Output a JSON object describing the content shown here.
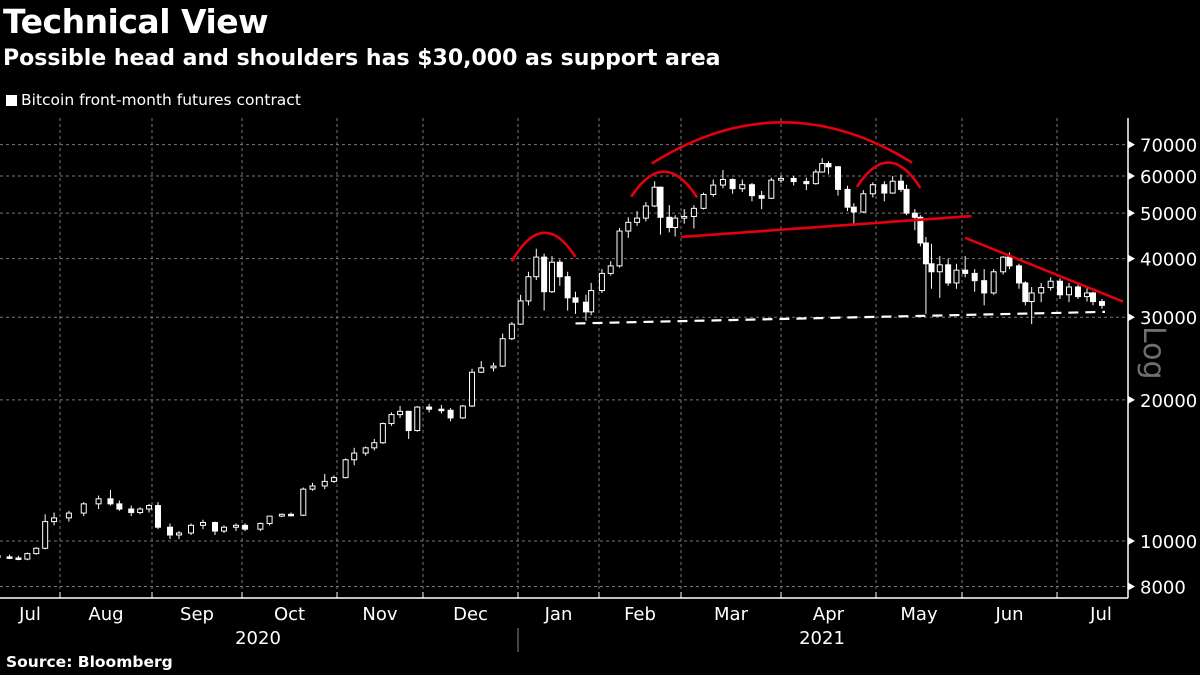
{
  "header": {
    "title": "Technical View",
    "subtitle": "Possible head and shoulders has $30,000 as support area"
  },
  "footer": {
    "source": "Source: Bloomberg"
  },
  "colors": {
    "candle": "#ffffff",
    "annotation": "#e3000f",
    "support": "#ffffff",
    "grid": "#777777"
  },
  "chart_data": {
    "type": "candlestick",
    "title": "Technical View",
    "subtitle": "Possible head and shoulders has $30,000 as support area",
    "legend": [
      {
        "label": "Bitcoin front-month futures contract",
        "placement": "top-left"
      }
    ],
    "yscale": "log",
    "ylabel_note": "Log",
    "ylim": [
      7500,
      80000
    ],
    "yticks": [
      8000,
      10000,
      20000,
      30000,
      40000,
      50000,
      60000,
      70000
    ],
    "ytick_labels": [
      "8000",
      "10000",
      "20000",
      "30000",
      "40000",
      "50000",
      "60000",
      "70000"
    ],
    "xticks": [
      {
        "label": "Jul",
        "month": "2020-07"
      },
      {
        "label": "Aug",
        "month": "2020-08"
      },
      {
        "label": "Sep",
        "month": "2020-09"
      },
      {
        "label": "Oct",
        "month": "2020-10"
      },
      {
        "label": "Nov",
        "month": "2020-11"
      },
      {
        "label": "Dec",
        "month": "2020-12"
      },
      {
        "label": "Jan",
        "month": "2021-01"
      },
      {
        "label": "Feb",
        "month": "2021-02"
      },
      {
        "label": "Mar",
        "month": "2021-03"
      },
      {
        "label": "Apr",
        "month": "2021-04"
      },
      {
        "label": "May",
        "month": "2021-05"
      },
      {
        "label": "Jun",
        "month": "2021-06"
      },
      {
        "label": "Jul",
        "month": "2021-07"
      }
    ],
    "years": [
      "2020",
      "2021"
    ],
    "grid": true,
    "columns": [
      "date",
      "open",
      "high",
      "low",
      "close"
    ],
    "candles": [
      [
        "2020-07-11",
        9300,
        9400,
        9200,
        9250
      ],
      [
        "2020-07-15",
        9250,
        9350,
        9150,
        9200
      ],
      [
        "2020-07-18",
        9200,
        9300,
        9100,
        9150
      ],
      [
        "2020-07-21",
        9150,
        9450,
        9100,
        9400
      ],
      [
        "2020-07-24",
        9400,
        9700,
        9350,
        9650
      ],
      [
        "2020-07-27",
        9650,
        11400,
        9600,
        11000
      ],
      [
        "2020-07-30",
        11000,
        11500,
        10800,
        11200
      ],
      [
        "2020-08-04",
        11200,
        11600,
        11000,
        11470
      ],
      [
        "2020-08-09",
        11470,
        12100,
        11300,
        12000
      ],
      [
        "2020-08-14",
        12000,
        12500,
        11700,
        12300
      ],
      [
        "2020-08-18",
        12300,
        12850,
        11900,
        12000
      ],
      [
        "2020-08-21",
        12000,
        12200,
        11600,
        11700
      ],
      [
        "2020-08-25",
        11700,
        11900,
        11300,
        11500
      ],
      [
        "2020-08-28",
        11500,
        11800,
        11400,
        11700
      ],
      [
        "2020-08-31",
        11700,
        12000,
        11500,
        11900
      ],
      [
        "2020-09-03",
        11900,
        12100,
        10600,
        10700
      ],
      [
        "2020-09-07",
        10700,
        10900,
        10100,
        10300
      ],
      [
        "2020-09-10",
        10300,
        10500,
        10100,
        10400
      ],
      [
        "2020-09-14",
        10400,
        10900,
        10300,
        10800
      ],
      [
        "2020-09-18",
        10800,
        11100,
        10600,
        10950
      ],
      [
        "2020-09-22",
        10950,
        11000,
        10300,
        10500
      ],
      [
        "2020-09-25",
        10500,
        10800,
        10400,
        10700
      ],
      [
        "2020-09-29",
        10700,
        10900,
        10500,
        10800
      ],
      [
        "2020-10-02",
        10800,
        10900,
        10500,
        10600
      ],
      [
        "2020-10-07",
        10600,
        10950,
        10500,
        10900
      ],
      [
        "2020-10-10",
        10900,
        11300,
        10800,
        11300
      ],
      [
        "2020-10-14",
        11300,
        11450,
        11250,
        11400
      ],
      [
        "2020-10-17",
        11400,
        11500,
        11300,
        11350
      ],
      [
        "2020-10-21",
        11350,
        13000,
        11300,
        12900
      ],
      [
        "2020-10-24",
        12900,
        13300,
        12800,
        13100
      ],
      [
        "2020-10-28",
        13100,
        13900,
        12900,
        13400
      ],
      [
        "2020-10-31",
        13400,
        13800,
        13300,
        13650
      ],
      [
        "2020-11-04",
        13650,
        15000,
        13600,
        14900
      ],
      [
        "2020-11-07",
        14900,
        15800,
        14500,
        15400
      ],
      [
        "2020-11-11",
        15400,
        15900,
        15200,
        15800
      ],
      [
        "2020-11-14",
        15800,
        16500,
        15600,
        16200
      ],
      [
        "2020-11-17",
        16200,
        17900,
        16100,
        17800
      ],
      [
        "2020-11-20",
        17800,
        18800,
        17600,
        18600
      ],
      [
        "2020-11-23",
        18600,
        19400,
        18300,
        18900
      ],
      [
        "2020-11-26",
        18900,
        18950,
        16500,
        17200
      ],
      [
        "2020-11-29",
        17200,
        19400,
        17100,
        19300
      ],
      [
        "2020-12-03",
        19300,
        19600,
        18800,
        19100
      ],
      [
        "2020-12-07",
        19100,
        19500,
        18700,
        19000
      ],
      [
        "2020-12-10",
        19000,
        19200,
        18000,
        18300
      ],
      [
        "2020-12-14",
        18300,
        19500,
        18200,
        19400
      ],
      [
        "2020-12-17",
        19400,
        23300,
        19300,
        22900
      ],
      [
        "2020-12-20",
        22900,
        24200,
        22800,
        23400
      ],
      [
        "2020-12-24",
        23400,
        24000,
        23000,
        23600
      ],
      [
        "2020-12-27",
        23600,
        27700,
        23500,
        27000
      ],
      [
        "2020-12-30",
        27000,
        29300,
        26800,
        29000
      ],
      [
        "2021-01-02",
        29000,
        33500,
        28900,
        32500
      ],
      [
        "2021-01-05",
        32500,
        37500,
        31800,
        36600
      ],
      [
        "2021-01-08",
        36600,
        42000,
        36000,
        40300
      ],
      [
        "2021-01-11",
        40300,
        41000,
        31000,
        34000
      ],
      [
        "2021-01-14",
        34000,
        40500,
        33800,
        39300
      ],
      [
        "2021-01-17",
        39300,
        39800,
        35000,
        36600
      ],
      [
        "2021-01-20",
        36600,
        37500,
        31000,
        33000
      ],
      [
        "2021-01-23",
        33000,
        34000,
        30500,
        32300
      ],
      [
        "2021-01-27",
        32300,
        33500,
        29500,
        30800
      ],
      [
        "2021-01-29",
        30800,
        35500,
        30300,
        34200
      ],
      [
        "2021-02-02",
        34200,
        38000,
        33800,
        37200
      ],
      [
        "2021-02-05",
        37200,
        39500,
        36800,
        38600
      ],
      [
        "2021-02-08",
        38600,
        46500,
        38300,
        45800
      ],
      [
        "2021-02-11",
        45800,
        49000,
        44300,
        47800
      ],
      [
        "2021-02-14",
        47800,
        50500,
        47000,
        48800
      ],
      [
        "2021-02-17",
        48800,
        52800,
        48000,
        51800
      ],
      [
        "2021-02-20",
        51800,
        58500,
        51500,
        56800
      ],
      [
        "2021-02-22",
        56800,
        57000,
        45000,
        49000
      ],
      [
        "2021-02-25",
        49000,
        52000,
        45500,
        46600
      ],
      [
        "2021-02-27",
        46600,
        49500,
        44600,
        48800
      ],
      [
        "2021-03-02",
        48800,
        51000,
        47500,
        49200
      ],
      [
        "2021-03-05",
        49200,
        52000,
        46400,
        51200
      ],
      [
        "2021-03-08",
        51200,
        55300,
        50900,
        54800
      ],
      [
        "2021-03-11",
        54800,
        59000,
        54200,
        57400
      ],
      [
        "2021-03-14",
        57400,
        61800,
        56500,
        59000
      ],
      [
        "2021-03-17",
        59000,
        59300,
        55000,
        56400
      ],
      [
        "2021-03-20",
        56400,
        59000,
        55500,
        57500
      ],
      [
        "2021-03-23",
        57500,
        58000,
        53000,
        54500
      ],
      [
        "2021-03-26",
        54500,
        55800,
        51000,
        53800
      ],
      [
        "2021-03-29",
        53800,
        59500,
        53600,
        58800
      ],
      [
        "2021-04-01",
        58800,
        60200,
        58000,
        59300
      ],
      [
        "2021-04-05",
        59300,
        60000,
        57300,
        58400
      ],
      [
        "2021-04-09",
        58400,
        59500,
        56000,
        57800
      ],
      [
        "2021-04-12",
        57800,
        62000,
        57500,
        61200
      ],
      [
        "2021-04-14",
        61200,
        65500,
        61000,
        63800
      ],
      [
        "2021-04-16",
        63800,
        64500,
        60500,
        62800
      ],
      [
        "2021-04-19",
        62800,
        63000,
        54500,
        56200
      ],
      [
        "2021-04-22",
        56200,
        57200,
        50500,
        51500
      ],
      [
        "2021-04-24",
        51500,
        52500,
        47000,
        50300
      ],
      [
        "2021-04-27",
        50300,
        56000,
        50000,
        55000
      ],
      [
        "2021-04-30",
        55000,
        58200,
        54000,
        57500
      ],
      [
        "2021-05-04",
        57500,
        58500,
        53000,
        55200
      ],
      [
        "2021-05-07",
        55200,
        60000,
        55000,
        58500
      ],
      [
        "2021-05-10",
        58500,
        60500,
        55500,
        56200
      ],
      [
        "2021-05-12",
        56200,
        57500,
        49500,
        50000
      ],
      [
        "2021-05-15",
        50000,
        51000,
        46000,
        49000
      ],
      [
        "2021-05-17",
        49000,
        49500,
        42500,
        43200
      ],
      [
        "2021-05-19",
        43200,
        44500,
        30500,
        39000
      ],
      [
        "2021-05-21",
        39000,
        43000,
        34500,
        37500
      ],
      [
        "2021-05-24",
        37500,
        40500,
        33000,
        38800
      ],
      [
        "2021-05-27",
        38800,
        40000,
        35000,
        35500
      ],
      [
        "2021-05-30",
        35500,
        39000,
        34500,
        37800
      ],
      [
        "2021-06-02",
        37800,
        40500,
        36500,
        37200
      ],
      [
        "2021-06-05",
        37200,
        38000,
        34000,
        35900
      ],
      [
        "2021-06-08",
        35900,
        38000,
        31800,
        33800
      ],
      [
        "2021-06-11",
        33800,
        38000,
        33500,
        37500
      ],
      [
        "2021-06-14",
        37500,
        40500,
        37000,
        40300
      ],
      [
        "2021-06-16",
        40300,
        41200,
        38000,
        38600
      ],
      [
        "2021-06-19",
        38600,
        39000,
        34500,
        35500
      ],
      [
        "2021-06-21",
        35500,
        35800,
        31800,
        32400
      ],
      [
        "2021-06-23",
        32400,
        34800,
        29000,
        33800
      ],
      [
        "2021-06-26",
        33800,
        35500,
        32300,
        34700
      ],
      [
        "2021-06-29",
        34700,
        36500,
        34200,
        35800
      ],
      [
        "2021-07-02",
        35800,
        36300,
        32800,
        33500
      ],
      [
        "2021-07-05",
        33500,
        35500,
        32300,
        34800
      ],
      [
        "2021-07-08",
        34800,
        35200,
        32800,
        33200
      ],
      [
        "2021-07-11",
        33200,
        34600,
        32400,
        33800
      ],
      [
        "2021-07-13",
        33800,
        34000,
        31800,
        32400
      ],
      [
        "2021-07-16",
        32400,
        32800,
        31300,
        31800
      ]
    ],
    "annotations": {
      "arcs": [
        {
          "name": "left-shoulder-arc-1",
          "start": [
            "2020-12-30",
            39500
          ],
          "peak": 45400,
          "end": [
            "2021-01-23",
            40300
          ]
        },
        {
          "name": "left-shoulder-arc-2",
          "start": [
            "2021-02-12",
            54200
          ],
          "peak": 61300,
          "end": [
            "2021-03-06",
            54000
          ]
        },
        {
          "name": "head-arc",
          "start": [
            "2021-02-19",
            63800
          ],
          "peak": 78100,
          "end": [
            "2021-05-14",
            64100
          ]
        },
        {
          "name": "right-shoulder-arc",
          "start": [
            "2021-04-25",
            56900
          ],
          "peak": 64100,
          "end": [
            "2021-05-17",
            56600
          ]
        }
      ],
      "lines": [
        {
          "name": "neckline",
          "style": "solid-red",
          "start": [
            "2021-03-01",
            44500
          ],
          "end": [
            "2021-06-04",
            49300
          ]
        },
        {
          "name": "downtrend-line",
          "style": "solid-red",
          "start": [
            "2021-06-02",
            44300
          ],
          "end": [
            "2021-07-23",
            32400
          ]
        },
        {
          "name": "support-line",
          "style": "dashed-white",
          "start": [
            "2021-01-23",
            29100
          ],
          "end": [
            "2021-07-17",
            30800
          ]
        }
      ]
    }
  }
}
